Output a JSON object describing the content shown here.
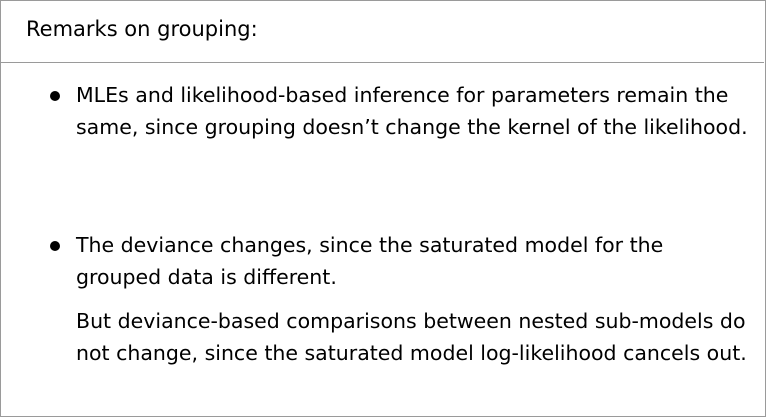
{
  "slide": {
    "title": "Remarks on grouping:",
    "bullets": [
      {
        "lines": [
          "MLEs and likelihood-based inference for parameters remain the",
          "same, since grouping doesn’t change the kernel of the likelihood."
        ]
      },
      {
        "lines": [
          "The deviance changes, since the saturated model for the",
          "grouped data is different."
        ],
        "continuation": [
          "But deviance-based comparisons between nested sub-models do",
          "not change, since the saturated model log-likelihood cancels out."
        ]
      }
    ]
  }
}
